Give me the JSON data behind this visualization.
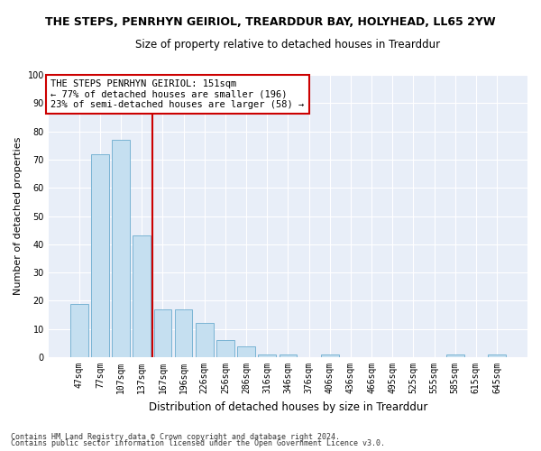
{
  "title": "THE STEPS, PENRHYN GEIRIOL, TREARDDUR BAY, HOLYHEAD, LL65 2YW",
  "subtitle": "Size of property relative to detached houses in Trearddur",
  "xlabel": "Distribution of detached houses by size in Trearddur",
  "ylabel": "Number of detached properties",
  "categories": [
    "47sqm",
    "77sqm",
    "107sqm",
    "137sqm",
    "167sqm",
    "196sqm",
    "226sqm",
    "256sqm",
    "286sqm",
    "316sqm",
    "346sqm",
    "376sqm",
    "406sqm",
    "436sqm",
    "466sqm",
    "495sqm",
    "525sqm",
    "555sqm",
    "585sqm",
    "615sqm",
    "645sqm"
  ],
  "values": [
    19,
    72,
    77,
    43,
    17,
    17,
    12,
    6,
    4,
    1,
    1,
    0,
    1,
    0,
    0,
    0,
    0,
    0,
    1,
    0,
    1
  ],
  "bar_color": "#c5dff0",
  "bar_edge_color": "#7ab4d4",
  "vline_color": "#cc0000",
  "vline_x": 3.5,
  "annotation_text": "THE STEPS PENRHYN GEIRIOL: 151sqm\n← 77% of detached houses are smaller (196)\n23% of semi-detached houses are larger (58) →",
  "annotation_box_color": "#ffffff",
  "annotation_box_edge": "#cc0000",
  "ylim": [
    0,
    100
  ],
  "yticks": [
    0,
    10,
    20,
    30,
    40,
    50,
    60,
    70,
    80,
    90,
    100
  ],
  "footer1": "Contains HM Land Registry data © Crown copyright and database right 2024.",
  "footer2": "Contains public sector information licensed under the Open Government Licence v3.0.",
  "plot_bg_color": "#e8eef8",
  "fig_bg_color": "#ffffff",
  "grid_color": "#ffffff",
  "title_fontsize": 9,
  "subtitle_fontsize": 8.5,
  "xlabel_fontsize": 8.5,
  "ylabel_fontsize": 8,
  "tick_fontsize": 7,
  "annotation_fontsize": 7.5,
  "footer_fontsize": 6
}
